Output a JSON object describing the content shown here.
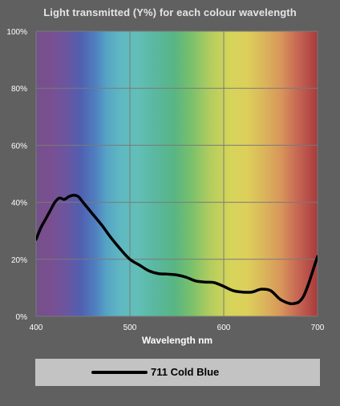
{
  "chart_data": {
    "type": "line",
    "title": "Light transmitted (Y%) for each colour wavelength",
    "xlabel": "Wavelength nm",
    "ylabel": "",
    "xlim": [
      400,
      700
    ],
    "ylim": [
      0,
      100
    ],
    "x_ticks": [
      "400",
      "500",
      "600",
      "700"
    ],
    "y_ticks": [
      "0%",
      "20%",
      "40%",
      "60%",
      "80%",
      "100%"
    ],
    "grid": true,
    "legend_placement": "bottom",
    "background": "visible-spectrum gradient",
    "series": [
      {
        "name": "711 Cold Blue",
        "color": "#000000",
        "x": [
          400,
          405,
          410,
          415,
          420,
          425,
          430,
          435,
          440,
          445,
          450,
          460,
          470,
          480,
          490,
          500,
          510,
          520,
          530,
          540,
          550,
          560,
          570,
          580,
          590,
          600,
          610,
          620,
          630,
          640,
          650,
          660,
          670,
          675,
          680,
          685,
          690,
          695,
          700
        ],
        "values": [
          27,
          31,
          34,
          37,
          40,
          41.5,
          41,
          42,
          42.5,
          42,
          40,
          36,
          32,
          27.5,
          23.5,
          20,
          18,
          16,
          15,
          14.8,
          14.5,
          13.7,
          12.4,
          12,
          11.8,
          10.5,
          9,
          8.5,
          8.5,
          9.5,
          9,
          6,
          4.5,
          4.5,
          5,
          7,
          11,
          16,
          21
        ]
      }
    ]
  }
}
